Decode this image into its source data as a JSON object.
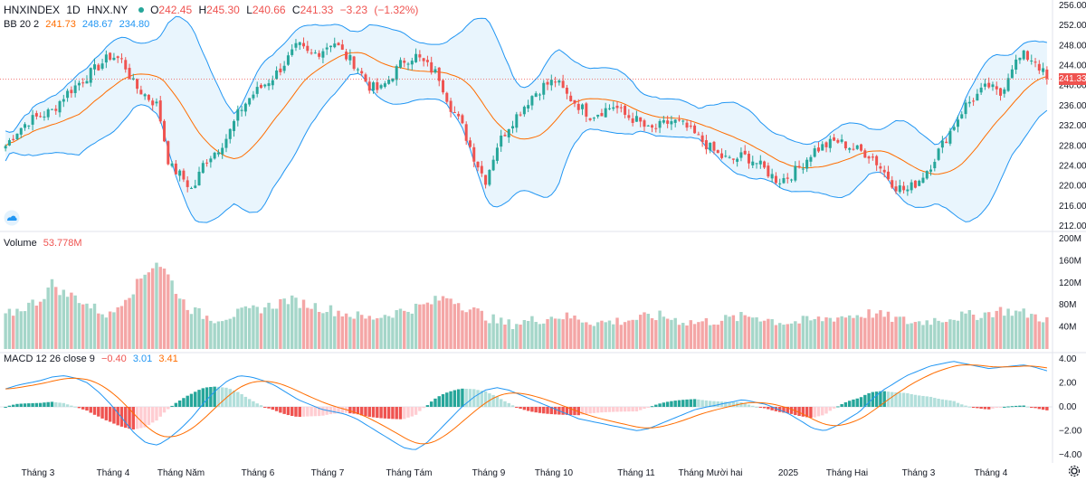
{
  "header": {
    "symbol": "HNXINDEX",
    "interval": "1D",
    "exchange": "HNX.NY",
    "open_label": "O",
    "open": "242.45",
    "high_label": "H",
    "high": "245.30",
    "low_label": "L",
    "low": "240.66",
    "close_label": "C",
    "close": "241.33",
    "change": "−3.23",
    "change_pct": "(−1.32%)"
  },
  "bb": {
    "label": "BB 20 2",
    "basis": "241.73",
    "upper": "248.67",
    "lower": "234.80"
  },
  "volume": {
    "label": "Volume",
    "value": "53.778M"
  },
  "macd": {
    "label": "MACD 12 26 close 9",
    "hist": "−0.40",
    "macd": "3.01",
    "signal": "3.41"
  },
  "last_price_tag": "241.33",
  "colors": {
    "up": "#26a69a",
    "down": "#ef5350",
    "bb_line": "#2196f3",
    "bb_fill": "#e3f2fd",
    "basis": "#ff6d00",
    "macd": "#2196f3",
    "signal": "#ff6d00",
    "vol_up": "#a5d6c9",
    "vol_down": "#f4a6a6"
  },
  "chart_data": {
    "type": "candlestick",
    "y_ticks": [
      "256.00",
      "252.00",
      "248.00",
      "244.00",
      "240.00",
      "236.00",
      "232.00",
      "228.00",
      "224.00",
      "220.00",
      "216.00",
      "212.00"
    ],
    "ylim": [
      212,
      256
    ],
    "volume_ticks": [
      "200M",
      "160M",
      "120M",
      "80M",
      "40M"
    ],
    "volume_ylim": [
      0,
      200
    ],
    "macd_ticks": [
      "4.00",
      "2.00",
      "0.00",
      "−2.00",
      "−4.00"
    ],
    "macd_ylim": [
      -4,
      4
    ],
    "x_ticks": [
      "Tháng 3",
      "Tháng 4",
      "Tháng Năm",
      "Tháng 6",
      "Tháng 7",
      "Tháng Tám",
      "Tháng 9",
      "Tháng 10",
      "Tháng 11",
      "Tháng Mười hai",
      "2025",
      "Tháng Hai",
      "Tháng 3",
      "Tháng 4"
    ],
    "close_path": [
      228,
      231,
      233,
      234,
      235,
      238,
      240,
      242,
      244,
      246,
      245,
      240,
      238,
      236,
      224,
      222,
      219,
      225,
      227,
      230,
      235,
      238,
      240,
      242,
      245,
      248,
      246,
      247,
      249,
      246,
      244,
      240,
      239,
      242,
      245,
      246,
      244,
      242,
      236,
      232,
      226,
      221,
      228,
      232,
      235,
      238,
      240,
      241,
      238,
      236,
      234,
      235,
      236,
      234,
      233,
      231,
      232,
      233,
      232,
      230,
      228,
      226,
      225,
      226,
      225,
      223,
      221,
      222,
      224,
      227,
      228,
      229,
      228,
      227,
      226,
      223,
      220,
      219,
      221,
      224,
      228,
      232,
      236,
      238,
      240,
      238,
      244,
      246,
      245,
      241.33
    ],
    "volume_path": [
      60,
      70,
      80,
      90,
      120,
      100,
      95,
      80,
      70,
      60,
      90,
      110,
      140,
      160,
      130,
      90,
      70,
      60,
      55,
      60,
      65,
      70,
      75,
      80,
      90,
      85,
      80,
      75,
      70,
      65,
      60,
      55,
      60,
      65,
      70,
      75,
      80,
      90,
      95,
      80,
      70,
      60,
      50,
      45,
      48,
      52,
      55,
      60,
      58,
      55,
      50,
      48,
      50,
      52,
      55,
      58,
      60,
      55,
      50,
      48,
      50,
      52,
      55,
      58,
      60,
      55,
      50,
      48,
      50,
      52,
      55,
      58,
      60,
      62,
      65,
      60,
      55,
      50,
      48,
      52,
      55,
      58,
      60,
      62,
      65,
      70,
      68,
      65,
      60,
      53.778
    ],
    "macd_path": [
      1.5,
      1.8,
      2.0,
      2.2,
      2.5,
      2.6,
      2.4,
      2.0,
      1.2,
      0.2,
      -1.0,
      -2.2,
      -3.0,
      -3.2,
      -2.6,
      -1.8,
      -0.8,
      0.4,
      1.4,
      2.2,
      2.6,
      2.5,
      2.2,
      1.8,
      1.2,
      0.6,
      0.2,
      -0.2,
      -0.4,
      -0.6,
      -1.0,
      -1.6,
      -2.2,
      -2.8,
      -3.4,
      -3.6,
      -3.0,
      -2.0,
      -1.0,
      0.0,
      0.8,
      1.4,
      1.6,
      1.4,
      1.0,
      0.6,
      0.2,
      -0.2,
      -0.6,
      -1.0,
      -1.2,
      -1.4,
      -1.6,
      -1.8,
      -2.0,
      -1.8,
      -1.4,
      -1.0,
      -0.6,
      -0.2,
      0.0,
      0.2,
      0.4,
      0.6,
      0.4,
      0.2,
      -0.2,
      -0.6,
      -1.2,
      -1.8,
      -2.0,
      -1.6,
      -1.0,
      -0.4,
      0.6,
      1.4,
      2.0,
      2.6,
      3.0,
      3.4,
      3.6,
      3.8,
      3.6,
      3.4,
      3.2,
      3.3,
      3.4,
      3.5,
      3.3,
      3.01
    ]
  }
}
